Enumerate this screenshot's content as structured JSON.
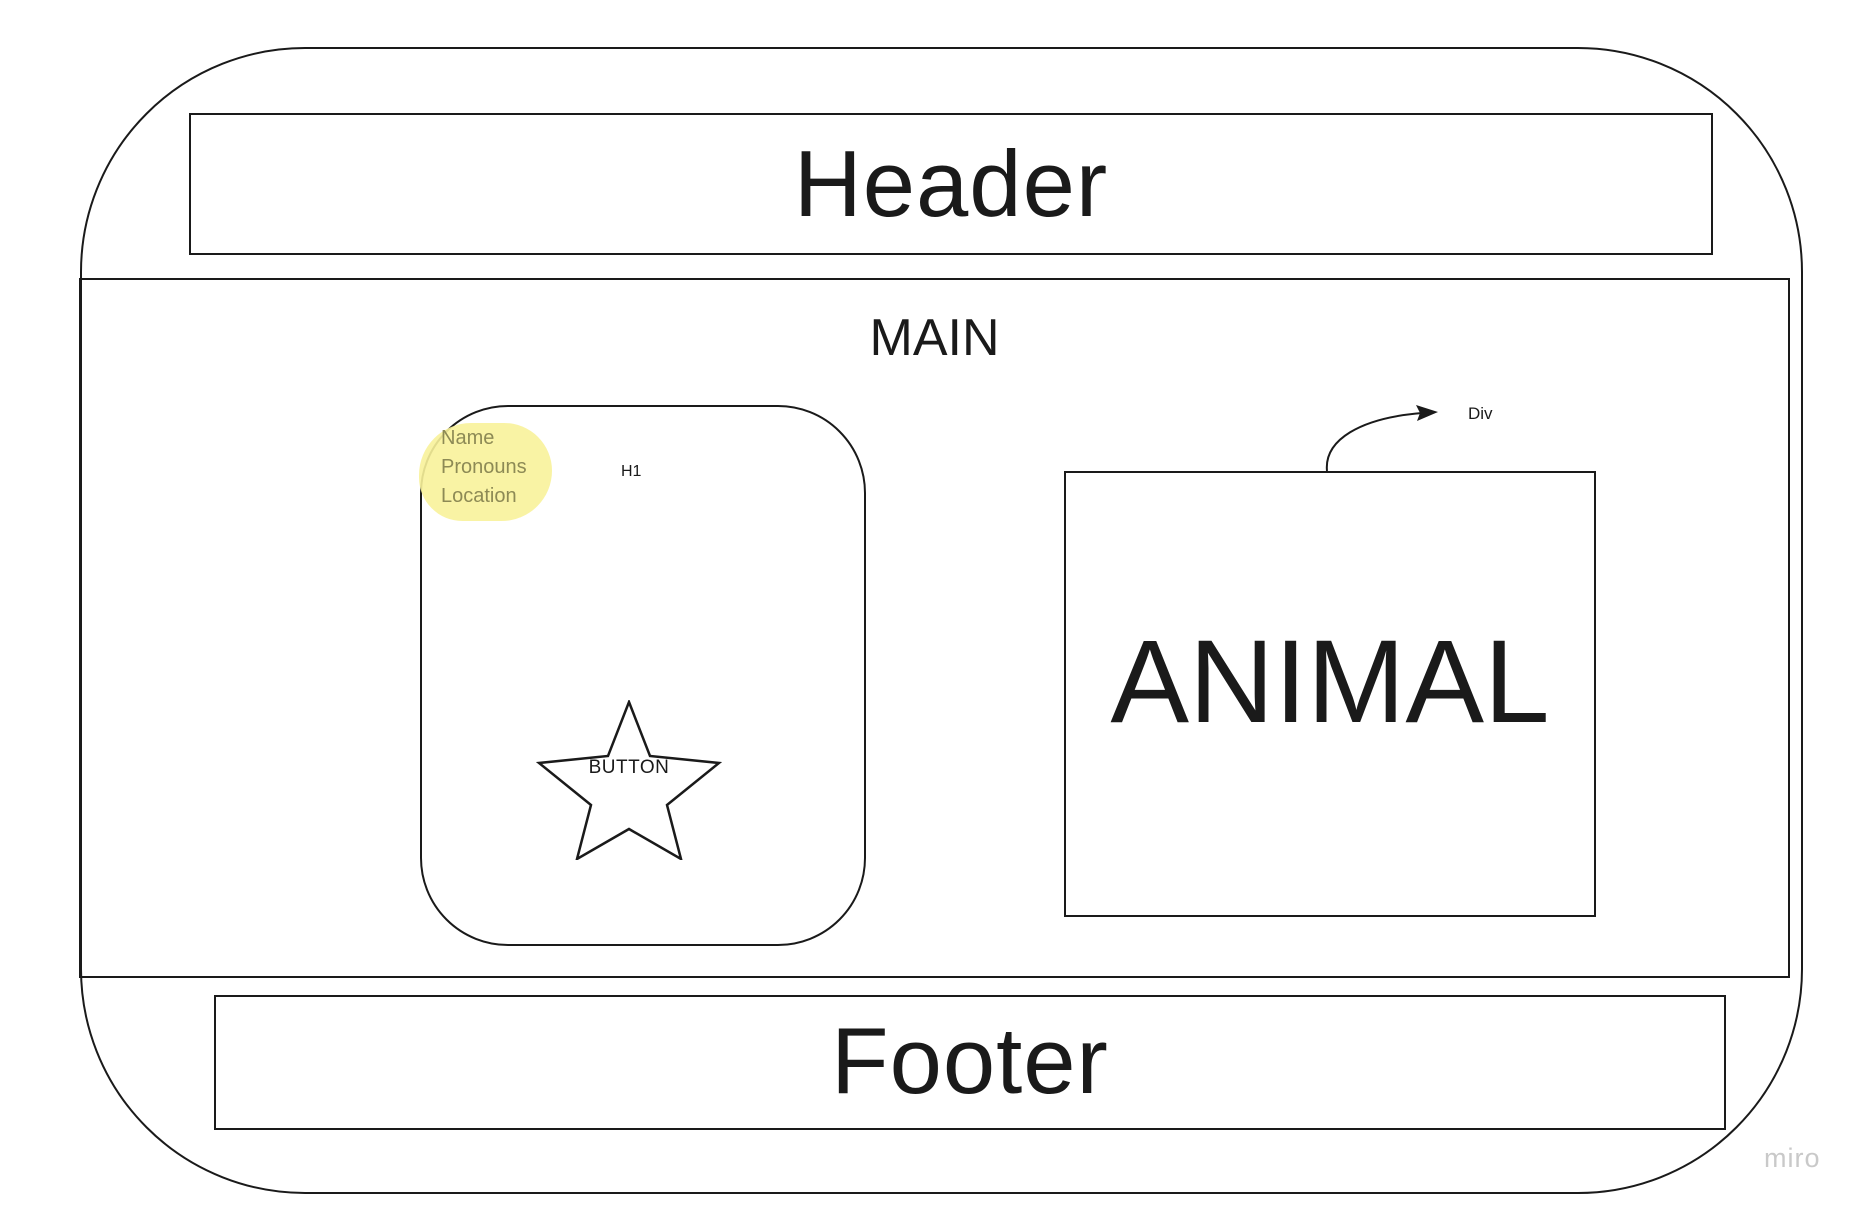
{
  "header": {
    "label": "Header"
  },
  "main": {
    "title": "MAIN",
    "card": {
      "highlight_lines": [
        "Name",
        "Pronouns",
        "Location"
      ],
      "h1_label": "H1",
      "button_label": "BUTTON",
      "highlight_color": "#f8f29a"
    },
    "animal_box": {
      "label": "ANIMAL"
    },
    "annotation": {
      "label": "Div"
    }
  },
  "footer": {
    "label": "Footer"
  },
  "watermark": {
    "text": "miro"
  },
  "colors": {
    "stroke": "#1a1a1a",
    "background": "#ffffff",
    "watermark": "#c9c9c9"
  }
}
